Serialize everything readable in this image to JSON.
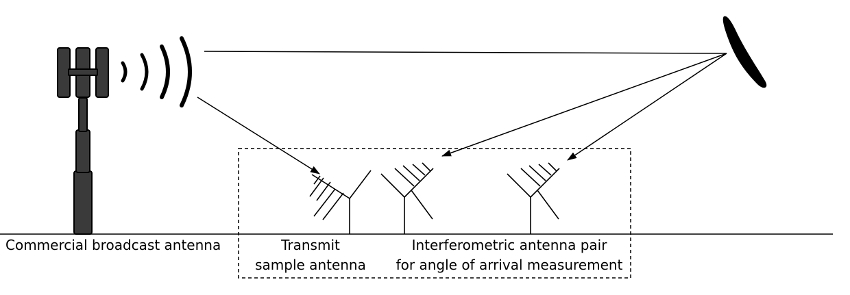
{
  "labels": {
    "broadcast": "Commercial broadcast antenna",
    "transmit_line1": "Transmit",
    "transmit_line2": "sample antenna",
    "interfero_line1": "Interferometric antenna pair",
    "interfero_line2": "for angle of arrival measurement"
  },
  "colors": {
    "ink": "#000000",
    "tower_fill": "#3a3a3a",
    "background": "#ffffff"
  }
}
